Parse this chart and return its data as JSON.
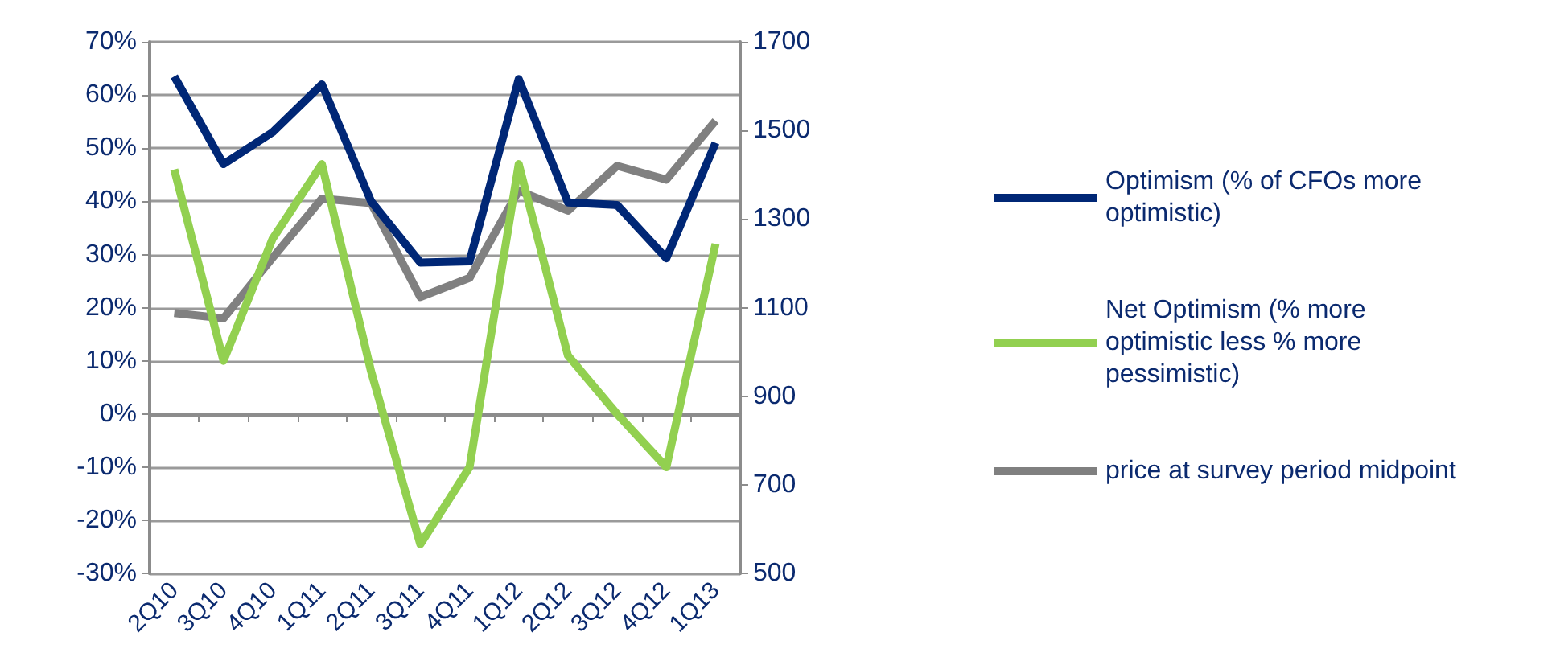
{
  "chart_data": {
    "type": "line",
    "categories": [
      "2Q10",
      "3Q10",
      "4Q10",
      "1Q11",
      "2Q11",
      "3Q11",
      "4Q11",
      "1Q12",
      "2Q12",
      "3Q12",
      "4Q12",
      "1Q13"
    ],
    "series": [
      {
        "name": "Optimism (% of CFOs more optimistic)",
        "color": "#002776",
        "values": [
          63.5,
          47,
          53,
          62,
          40,
          28.5,
          28.7,
          63,
          39.8,
          39.3,
          29.3,
          51
        ]
      },
      {
        "name": "Net Optimism (% more optimistic less % more pessimistic)",
        "color": "#92d050",
        "values": [
          46,
          10,
          33,
          47,
          8,
          -24.5,
          -10,
          47,
          11,
          0,
          -10,
          32
        ]
      },
      {
        "name": "price at survey period midpoint",
        "color": "#808080",
        "axis": "y2",
        "values": [
          1088,
          1076,
          1213,
          1346,
          1336,
          1124,
          1167,
          1364,
          1319,
          1420,
          1389,
          1522
        ]
      }
    ],
    "ylim": [
      -30,
      70
    ],
    "yticks": [
      {
        "value": -30,
        "label": "-30%"
      },
      {
        "value": -20,
        "label": "-20%"
      },
      {
        "value": -10,
        "label": "-10%"
      },
      {
        "value": 0,
        "label": "0%"
      },
      {
        "value": 10,
        "label": "10%"
      },
      {
        "value": 20,
        "label": "20%"
      },
      {
        "value": 30,
        "label": "30%"
      },
      {
        "value": 40,
        "label": "40%"
      },
      {
        "value": 50,
        "label": "50%"
      },
      {
        "value": 60,
        "label": "60%"
      },
      {
        "value": 70,
        "label": "70%"
      }
    ],
    "y2lim": [
      500,
      1700
    ],
    "y2ticks": [
      500,
      700,
      900,
      1100,
      1300,
      1500,
      1700
    ],
    "grid": "y",
    "legend": "right",
    "marker": "none",
    "line_style": "solid"
  }
}
